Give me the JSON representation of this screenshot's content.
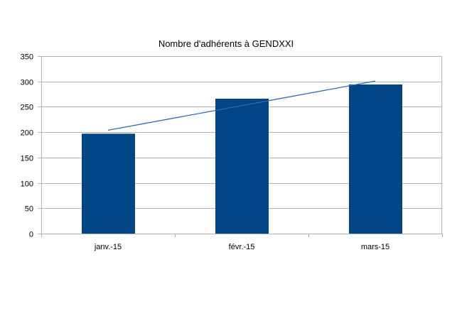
{
  "chart_data": {
    "type": "bar",
    "title": "Nombre d'adhérents à GENDXXI",
    "categories": [
      "janv.-15",
      "févr.-15",
      "mars-15"
    ],
    "series": [
      {
        "values": [
          197,
          266,
          294
        ],
        "color": "#004586"
      }
    ],
    "trendline": {
      "type": "linear",
      "color": "#2e6bb0"
    },
    "ylim": [
      0,
      350
    ],
    "yticks": [
      0,
      50,
      100,
      150,
      200,
      250,
      300,
      350
    ],
    "grid": true,
    "legend": "none"
  }
}
